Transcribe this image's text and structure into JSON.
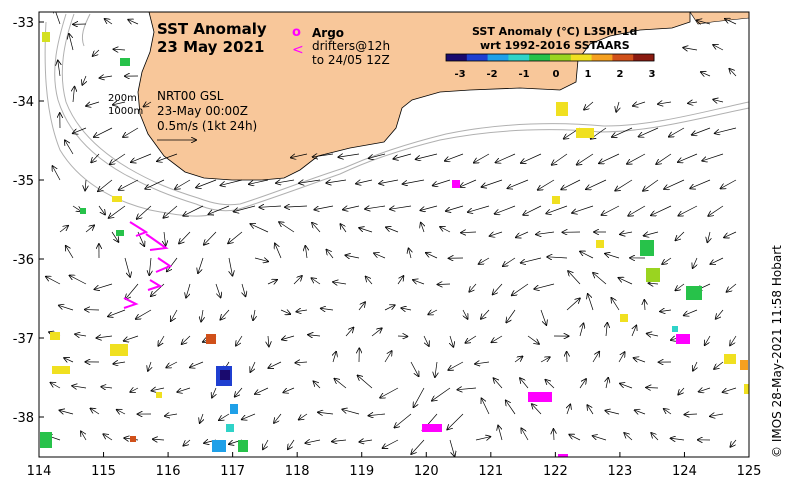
{
  "title": {
    "line1": "SST Anomaly",
    "line2": "23 May 2021"
  },
  "legend_drifters": {
    "argo_symbol": "o",
    "argo_label": "Argo",
    "drifter_symbol": "<",
    "drifter_label_1": "drifters@12h",
    "drifter_label_2": "to 24/05 12Z"
  },
  "colorbar": {
    "title_line1": "SST Anomaly (°C) L3SM-1d",
    "title_line2": "wrt 1992-2016 SSTAARS",
    "ticks": [
      "-3",
      "-2",
      "-1",
      "0",
      "1",
      "2",
      "3"
    ],
    "colors": [
      "#1a0a6e",
      "#1f3fd1",
      "#1fa0e8",
      "#2fd3c8",
      "#27c24a",
      "#9ad420",
      "#f0e020",
      "#f5a020",
      "#d0501a",
      "#8a1a10"
    ]
  },
  "current_info": {
    "depth_200": "200m",
    "depth_1000": "1000m",
    "product": "NRT00 GSL",
    "datetime": "23-May 00:00Z",
    "scale": "0.5m/s (1kt 24h)"
  },
  "axes": {
    "x_ticks": [
      "114",
      "115",
      "116",
      "117",
      "118",
      "119",
      "120",
      "121",
      "122",
      "123",
      "124",
      "125"
    ],
    "y_ticks": [
      "-33",
      "-34",
      "-35",
      "-36",
      "-37",
      "-38"
    ]
  },
  "credit": "© IMOS 28-May-2021 11:58 Hobart",
  "colors": {
    "land": "#f8c79a",
    "drifter": "#ff00ff",
    "contour": "#b0b0b0"
  }
}
